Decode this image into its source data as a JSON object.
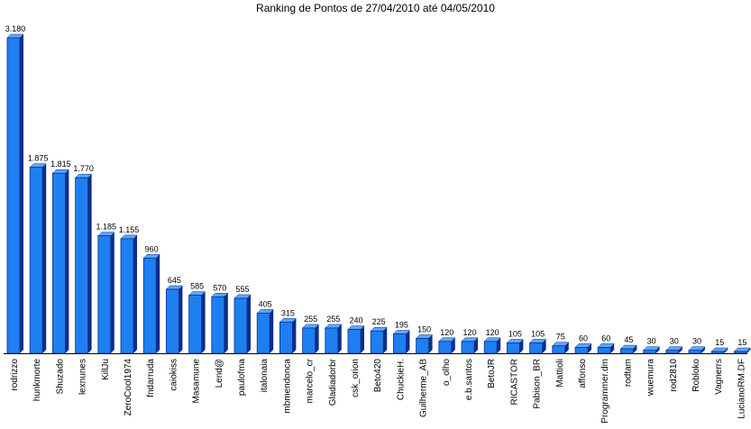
{
  "chart_data": {
    "type": "bar",
    "title": "Ranking de Pontos de 27/04/2010 até 04/05/2010",
    "categories": [
      "rodrizzo",
      "hunkmorte",
      "Shuzado",
      "lexnunes",
      "KillJu",
      "ZeroCool1974",
      "fndarruda",
      "caiokiss",
      "Masamune",
      "Lend@",
      "paulofma",
      "italonaia",
      "mbmendonca",
      "marcelo_cr",
      "Gladiadorbr",
      "csk_orion",
      "Beto420",
      "ChuckieH.",
      "Guilherme_AB",
      "o_olho",
      "e.b.santos",
      "BetoJR",
      "RICASTOR",
      "Pabison_BR",
      "Mattioli",
      "affonso",
      "Programmer.dm",
      "rodtam",
      "wuemura",
      "rod2810",
      "Robloko",
      "Vagnerrs",
      "LucianoRM.DF"
    ],
    "values": [
      3180,
      1875,
      1815,
      1770,
      1185,
      1155,
      960,
      645,
      585,
      570,
      555,
      405,
      315,
      255,
      255,
      240,
      225,
      195,
      150,
      120,
      120,
      120,
      105,
      105,
      75,
      60,
      60,
      45,
      30,
      30,
      30,
      15,
      15
    ],
    "value_labels": [
      "3.180",
      "1.875",
      "1.815",
      "1.770",
      "1.185",
      "1.155",
      "960",
      "645",
      "585",
      "570",
      "555",
      "405",
      "315",
      "255",
      "255",
      "240",
      "225",
      "195",
      "150",
      "120",
      "120",
      "120",
      "105",
      "105",
      "75",
      "60",
      "60",
      "45",
      "30",
      "30",
      "30",
      "15",
      "15"
    ],
    "xlabel": "",
    "ylabel": "",
    "ylim": [
      0,
      3180
    ],
    "grid": false,
    "legend": "none",
    "colors": {
      "bar_front": "#1E7FF0",
      "bar_top": "#5AA8FF",
      "bar_side": "#0A2E8C",
      "axis": "#000000"
    }
  }
}
